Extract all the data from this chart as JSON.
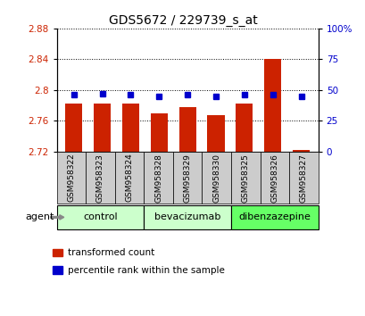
{
  "title": "GDS5672 / 229739_s_at",
  "samples": [
    "GSM958322",
    "GSM958323",
    "GSM958324",
    "GSM958328",
    "GSM958329",
    "GSM958330",
    "GSM958325",
    "GSM958326",
    "GSM958327"
  ],
  "transformed_count": [
    2.782,
    2.782,
    2.782,
    2.77,
    2.778,
    2.768,
    2.782,
    2.84,
    2.722
  ],
  "percentile_rank": [
    46,
    47,
    46,
    45,
    46,
    45,
    46,
    46,
    45
  ],
  "bar_base": 2.72,
  "ylim_left": [
    2.72,
    2.88
  ],
  "ylim_right": [
    0,
    100
  ],
  "yticks_left": [
    2.72,
    2.76,
    2.8,
    2.84,
    2.88
  ],
  "ytick_labels_left": [
    "2.72",
    "2.76",
    "2.8",
    "2.84",
    "2.88"
  ],
  "yticks_right": [
    0,
    25,
    50,
    75,
    100
  ],
  "ytick_labels_right": [
    "0",
    "25",
    "50",
    "75",
    "100%"
  ],
  "groups": [
    {
      "label": "control",
      "indices": [
        0,
        1,
        2
      ],
      "color": "#ccffcc"
    },
    {
      "label": "bevacizumab",
      "indices": [
        3,
        4,
        5
      ],
      "color": "#ccffcc"
    },
    {
      "label": "dibenzazepine",
      "indices": [
        6,
        7,
        8
      ],
      "color": "#66ff66"
    }
  ],
  "bar_color": "#cc2200",
  "dot_color": "#0000cc",
  "bar_width": 0.6,
  "grid_color": "#000000",
  "background_color": "#ffffff",
  "xtick_bg_color": "#cccccc",
  "agent_label": "agent",
  "legend_items": [
    {
      "label": "transformed count",
      "color": "#cc2200"
    },
    {
      "label": "percentile rank within the sample",
      "color": "#0000cc"
    }
  ]
}
